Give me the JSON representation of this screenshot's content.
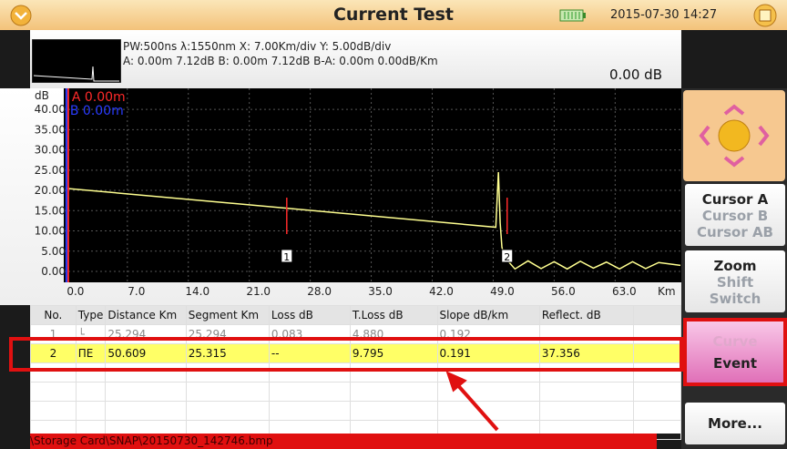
{
  "header": {
    "title": "Current Test",
    "datetime": "2015-07-30 14:27"
  },
  "info": {
    "line1": "PW:500ns λ:1550nm  X: 7.00Km/div Y: 5.00dB/div",
    "line2": "A: 0.00m 7.12dB B: 0.00m 7.12dB B-A: 0.00m 0.00dB/Km",
    "reading": "0.00 dB"
  },
  "chart_data": {
    "type": "line",
    "ylabel": "dB",
    "xlabel": "Km",
    "xlim": [
      -0.3,
      70.6
    ],
    "ylim": [
      -2.7,
      45.2
    ],
    "xticks": [
      {
        "value": 0,
        "label": "0.0"
      },
      {
        "value": 7,
        "label": "7.0"
      },
      {
        "value": 14,
        "label": "14.0"
      },
      {
        "value": 21,
        "label": "21.0"
      },
      {
        "value": 28,
        "label": "28.0"
      },
      {
        "value": 35,
        "label": "35.0"
      },
      {
        "value": 42,
        "label": "42.0"
      },
      {
        "value": 49,
        "label": "49.0"
      },
      {
        "value": 56,
        "label": "56.0"
      },
      {
        "value": 63,
        "label": "63.0"
      }
    ],
    "yticks": [
      {
        "value": 0,
        "label": "0.00"
      },
      {
        "value": 5,
        "label": "5.00"
      },
      {
        "value": 10,
        "label": "10.00"
      },
      {
        "value": 15,
        "label": "15.00"
      },
      {
        "value": 20,
        "label": "20.00"
      },
      {
        "value": 25,
        "label": "25.00"
      },
      {
        "value": 30,
        "label": "30.00"
      },
      {
        "value": 35,
        "label": "35.00"
      },
      {
        "value": 40,
        "label": "40.00"
      }
    ],
    "grid": true,
    "series": [
      {
        "color": "#ffff90",
        "x": [
          0,
          25.3,
          49.3,
          49.6,
          49.8,
          50.0,
          50.3,
          51.5,
          53,
          54.5,
          56,
          57.5,
          59,
          60.5,
          62,
          63.5,
          65,
          66.5,
          68,
          70.5
        ],
        "values": [
          20.5,
          15.6,
          10.9,
          24.5,
          12,
          6,
          3.5,
          0.6,
          2.6,
          0.7,
          2.4,
          0.6,
          2.5,
          0.8,
          2.3,
          0.6,
          2.4,
          0.7,
          2.2,
          1.5
        ]
      }
    ],
    "cursors": [
      {
        "label": "A 0.00m",
        "x": 0,
        "color": "#ff2a2a"
      },
      {
        "label": "B 0.00m",
        "x": 0,
        "color": "#2a3cff"
      }
    ],
    "events": [
      {
        "label": "1",
        "x": 25.3
      },
      {
        "label": "2",
        "x": 50.6
      }
    ]
  },
  "table": {
    "columns": [
      "No.",
      "Type",
      "Distance Km",
      "Segment Km",
      "Loss dB",
      "T.Loss dB",
      "Slope dB/km",
      "Reflect. dB"
    ],
    "rows": [
      [
        "1",
        "└",
        "25.294",
        "25.294",
        "0.083",
        "4.880",
        "0.192",
        ""
      ],
      [
        "2",
        "ΠE",
        "50.609",
        "25.315",
        "--",
        "9.795",
        "0.191",
        "37.356"
      ]
    ]
  },
  "side_panel": {
    "cursor": [
      "Cursor A",
      "Cursor B",
      "Cursor AB"
    ],
    "zoom": [
      "Zoom",
      "Shift",
      "Switch"
    ],
    "mode": [
      "Curve",
      "Event"
    ],
    "more": "More..."
  },
  "status": "\\Storage Card\\SNAP\\20150730_142746.bmp"
}
